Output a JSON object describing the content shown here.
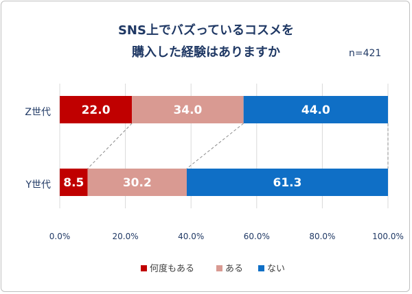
{
  "chart_data": {
    "type": "bar",
    "orientation": "horizontal",
    "stacked": "percent",
    "title_lines": [
      "SNS上でバズっているコスメを",
      "購入した経験はありますか"
    ],
    "sample_size": "n=421",
    "categories": [
      "Z世代",
      "Y世代"
    ],
    "series": [
      {
        "name": "何度もある",
        "color": "#c00000",
        "values": [
          22.0,
          8.5
        ],
        "labels": [
          "22.0",
          "8.5"
        ]
      },
      {
        "name": "ある",
        "color": "#d99a92",
        "values": [
          34.0,
          30.2
        ],
        "labels": [
          "34.0",
          "30.2"
        ]
      },
      {
        "name": "ない",
        "color": "#0f6fc6",
        "values": [
          44.0,
          61.3
        ],
        "labels": [
          "44.0",
          "61.3"
        ]
      }
    ],
    "xlim": [
      0,
      100
    ],
    "x_ticks": [
      "0.0%",
      "20.0%",
      "40.0%",
      "60.0%",
      "80.0%",
      "100.0%"
    ],
    "gridlines": true,
    "series_lines": true,
    "legend_position": "bottom"
  }
}
